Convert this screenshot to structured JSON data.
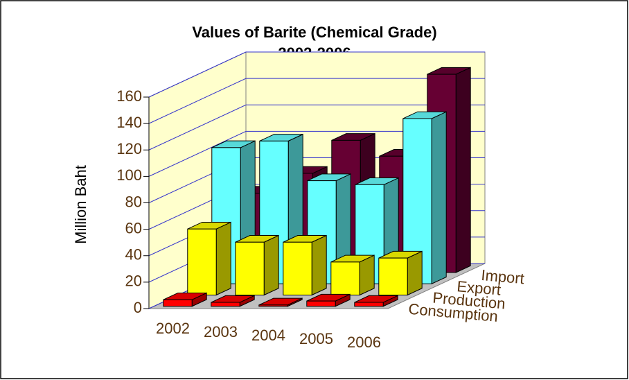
{
  "chart_data": {
    "type": "bar3d",
    "title": "Values of Barite (Chemical Grade)",
    "subtitle": "2002-2006",
    "y_label": "Million Baht",
    "categories": [
      "2002",
      "2003",
      "2004",
      "2005",
      "2006"
    ],
    "series": [
      {
        "name": "Consumption",
        "color": "#ff0000",
        "values": [
          5,
          3,
          1,
          4,
          3
        ]
      },
      {
        "name": "Production",
        "color": "#ffff00",
        "values": [
          50,
          40,
          40,
          25,
          28
        ]
      },
      {
        "name": "Export",
        "color": "#66ffff",
        "values": [
          103,
          108,
          78,
          75,
          125
        ]
      },
      {
        "name": "Import",
        "color": "#660033",
        "values": [
          60,
          75,
          100,
          88,
          150
        ]
      }
    ],
    "ylim": [
      0,
      160
    ],
    "yticks": [
      0,
      20,
      40,
      60,
      80,
      100,
      120,
      140,
      160
    ],
    "grid": true
  }
}
